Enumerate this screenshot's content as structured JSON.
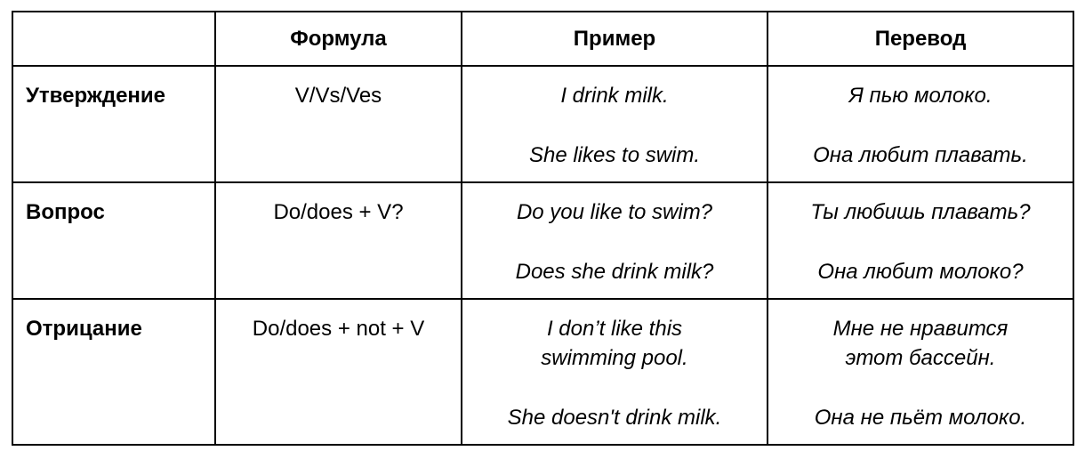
{
  "table": {
    "headers": [
      "",
      "Формула",
      "Пример",
      "Перевод"
    ],
    "rows": [
      {
        "label": "Утверждение",
        "formula": "V/Vs/Ves",
        "examples": [
          "I drink milk.",
          "She likes to swim."
        ],
        "translations": [
          "Я пью молоко.",
          "Она любит плавать."
        ]
      },
      {
        "label": "Вопрос",
        "formula": "Do/does + V?",
        "examples": [
          "Do you like to swim?",
          "Does she drink milk?"
        ],
        "translations": [
          "Ты любишь плавать?",
          "Она любит молоко?"
        ]
      },
      {
        "label": "Отрицание",
        "formula": "Do/does + not + V",
        "examples": [
          "I don’t like this swimming pool.",
          "She doesn't drink milk."
        ],
        "translations": [
          "Мне не нравится этот бассейн.",
          "Она не пьёт молоко."
        ]
      }
    ]
  }
}
